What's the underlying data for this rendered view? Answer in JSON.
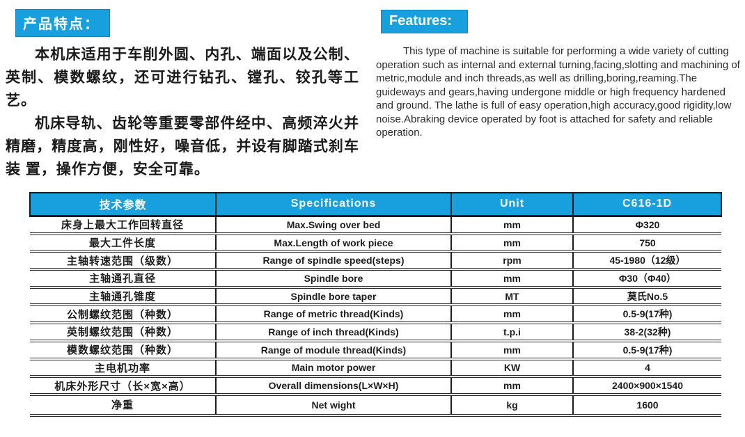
{
  "colors": {
    "accent_blue": "#17a0dd",
    "header_text": "#ffffff",
    "body_text": "#1d1d1d"
  },
  "cn_section": {
    "title": "产品特点：",
    "paragraph1": "本机床适用于车削外圆、内孔、端面以及公制、英制、模数螺纹，还可进行钻孔、镗孔、铰孔等工艺。",
    "paragraph2": "机床导轨、齿轮等重要零部件经中、高频淬火并精磨，精度高，刚性好，噪音低，并设有脚踏式刹车装 置，操作方便，安全可靠。"
  },
  "en_section": {
    "title": "Features:",
    "paragraph": "This type of machine is suitable for performing a wide variety of cutting operation such as internal and external turning,facing,slotting and machining of metric,module and inch threads,as well as drilling,boring,reaming.The guideways and gears,having undergone middle or high frequency hardened and ground. The lathe is full of easy operation,high accuracy,good rigidity,low noise.Abraking device operated by foot is attached for safety and reliable operation."
  },
  "table": {
    "headers": [
      "技术参数",
      "Specifications",
      "Unit",
      "C616-1D"
    ],
    "rows": [
      [
        "床身上最大工作回转直径",
        "Max.Swing over bed",
        "mm",
        "Φ320"
      ],
      [
        "最大工件长度",
        "Max.Length of work piece",
        "mm",
        "750"
      ],
      [
        "主轴转速范围（级数）",
        "Range of spindle speed(steps)",
        "rpm",
        "45-1980（12级）"
      ],
      [
        "主轴通孔直径",
        "Spindle bore",
        "mm",
        "Φ30（Φ40）"
      ],
      [
        "主轴通孔锥度",
        "Spindle bore taper",
        "MT",
        "莫氏No.5"
      ],
      [
        "公制螺纹范围（种数）",
        "Range of metric thread(Kinds)",
        "mm",
        "0.5-9(17种)"
      ],
      [
        "英制螺纹范围（种数）",
        "Range of inch thread(Kinds)",
        "t.p.i",
        "38-2(32种)"
      ],
      [
        "模数螺纹范围（种数）",
        "Range of module thread(Kinds)",
        "mm",
        "0.5-9(17种)"
      ],
      [
        "主电机功率",
        "Main motor power",
        "KW",
        "4"
      ],
      [
        "机床外形尺寸（长×宽×高）",
        "Overall dimensions(L×W×H)",
        "mm",
        "2400×900×1540"
      ],
      [
        "净重",
        "Net wight",
        "kg",
        "1600"
      ]
    ]
  }
}
